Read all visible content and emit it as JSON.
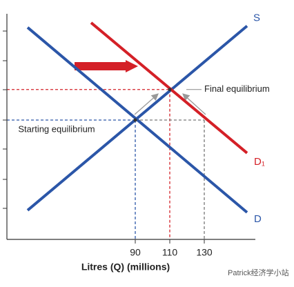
{
  "chart_data": {
    "type": "line",
    "x_label": "Litres (Q) (millions)",
    "xlim": [
      15.6,
      159.6
    ],
    "ylim": [
      0,
      7.6
    ],
    "xticks": [
      90,
      110,
      130
    ],
    "series": [
      {
        "name": "S",
        "color": "#2b56a8",
        "x": [
          27.6,
          154.8
        ],
        "values": [
          0.98,
          7.19
        ]
      },
      {
        "name": "D",
        "color": "#2b56a8",
        "x": [
          27.6,
          154.8
        ],
        "values": [
          7.14,
          0.91
        ]
      },
      {
        "name": "D₁",
        "color": "#d42027",
        "x": [
          64.4,
          154.8
        ],
        "values": [
          7.3,
          2.91
        ]
      }
    ],
    "equilibria": [
      {
        "label": "Starting equilibrium",
        "x": 90,
        "y": 4.02,
        "color": "#2b56a8"
      },
      {
        "label": "Final equilibrium",
        "x": 110,
        "y": 5.05,
        "color": "#d42027"
      }
    ],
    "watermark": "Patrick经济学小站"
  }
}
